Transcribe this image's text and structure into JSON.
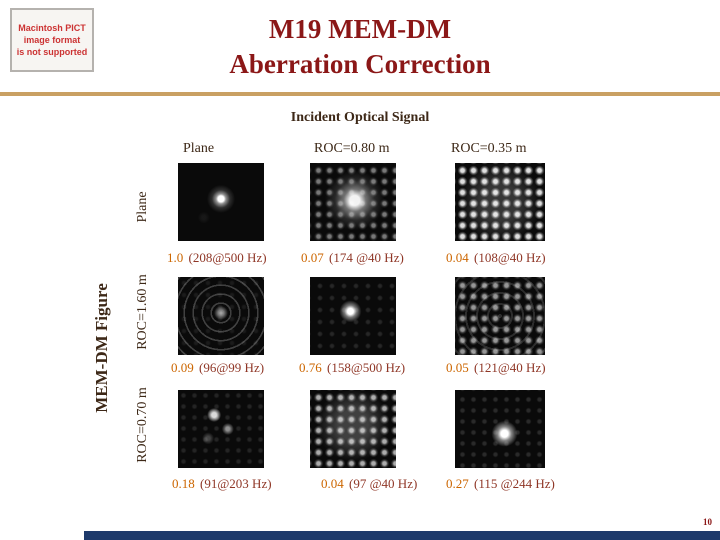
{
  "placeholder": {
    "lines": [
      "Macintosh PICT",
      "image format",
      "is not supported"
    ]
  },
  "title": {
    "line1": "M19 MEM-DM",
    "line2": "Aberration Correction"
  },
  "figure": {
    "header": "Incident Optical Signal",
    "columns": [
      "Plane",
      "ROC=0.80 m",
      "ROC=0.35 m"
    ],
    "row_axis_label": "MEM-DM Figure",
    "rows": [
      "Plane",
      "ROC=1.60 m",
      "ROC=0.70 m"
    ],
    "cells": [
      [
        {
          "value": "1.0",
          "detail": "(208@500 Hz)",
          "pattern": "center-dot"
        },
        {
          "value": "0.07",
          "detail": "(174 @40 Hz)",
          "pattern": "grid-blob"
        },
        {
          "value": "0.04",
          "detail": "(108@40 Hz)",
          "pattern": "waffle-bright"
        }
      ],
      [
        {
          "value": "0.09",
          "detail": "(96@99 Hz)",
          "pattern": "rings"
        },
        {
          "value": "0.76",
          "detail": "(158@500 Hz)",
          "pattern": "dot-faint-grid"
        },
        {
          "value": "0.05",
          "detail": "(121@40 Hz)",
          "pattern": "grid-rings"
        }
      ],
      [
        {
          "value": "0.18",
          "detail": "(91@203 Hz)",
          "pattern": "sparse-specks"
        },
        {
          "value": "0.04",
          "detail": "(97 @40 Hz)",
          "pattern": "waffle-dim"
        },
        {
          "value": "0.27",
          "detail": "(115 @244 Hz)",
          "pattern": "bright-dot-grid"
        }
      ]
    ]
  },
  "page_number": "10",
  "colors": {
    "title": "#8b1717",
    "heading": "#3d2817",
    "caption_value": "#cc6600",
    "caption_detail": "#8f3626",
    "divider_tan": "#c9a063",
    "footer_bar": "#1e3a6b"
  }
}
